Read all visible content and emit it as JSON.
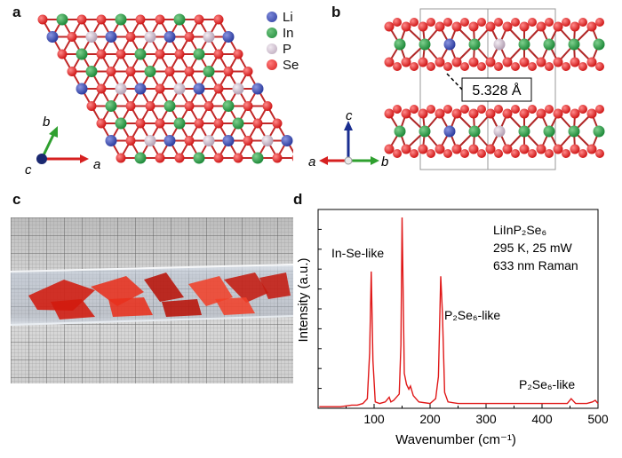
{
  "panels": {
    "a": "a",
    "b": "b",
    "c": "c",
    "d": "d"
  },
  "legend": {
    "items": [
      {
        "label": "Li",
        "color": "#2e3ea0"
      },
      {
        "label": "In",
        "color": "#1f8a3a"
      },
      {
        "label": "P",
        "color": "#c8b6c8"
      },
      {
        "label": "Se",
        "color": "#d62020"
      }
    ]
  },
  "panel_a": {
    "axis_a": "a",
    "axis_b": "b",
    "axis_c": "c"
  },
  "panel_b": {
    "distance": "5.328 Å",
    "axis_a": "a",
    "axis_b": "b",
    "axis_c": "c"
  },
  "chart_data": {
    "type": "line",
    "xlabel": "Wavenumber (cm⁻¹)",
    "ylabel": "Intensity (a.u.)",
    "xlim": [
      0,
      500
    ],
    "xticks": [
      100,
      200,
      300,
      400,
      500
    ],
    "annotations": {
      "compound": "LiInP₂Se₆",
      "conditions": "295 K, 25 mW",
      "method": "633 nm Raman",
      "peak1": "In-Se-like",
      "peak2": "P₂Se₆-like",
      "peak3": "P₂Se₆-like"
    },
    "series": [
      {
        "color": "#e01818",
        "x": [
          2,
          40,
          60,
          70,
          80,
          88,
          92,
          95,
          98,
          102,
          110,
          120,
          127,
          130,
          135,
          145,
          148,
          150,
          152,
          154,
          158,
          162,
          165,
          170,
          180,
          200,
          210,
          215,
          219,
          222,
          226,
          232,
          250,
          300,
          350,
          380,
          400,
          420,
          445,
          452,
          460,
          480,
          490,
          495,
          500
        ],
        "y": [
          1,
          1,
          2,
          2,
          3,
          6,
          35,
          86,
          30,
          4,
          3,
          4,
          7,
          4,
          5,
          9,
          40,
          120,
          70,
          22,
          15,
          12,
          14,
          8,
          4,
          3,
          6,
          20,
          83,
          60,
          10,
          4,
          3,
          3,
          3,
          3,
          3,
          3,
          3,
          6,
          3,
          3,
          4,
          5,
          3
        ]
      }
    ]
  }
}
